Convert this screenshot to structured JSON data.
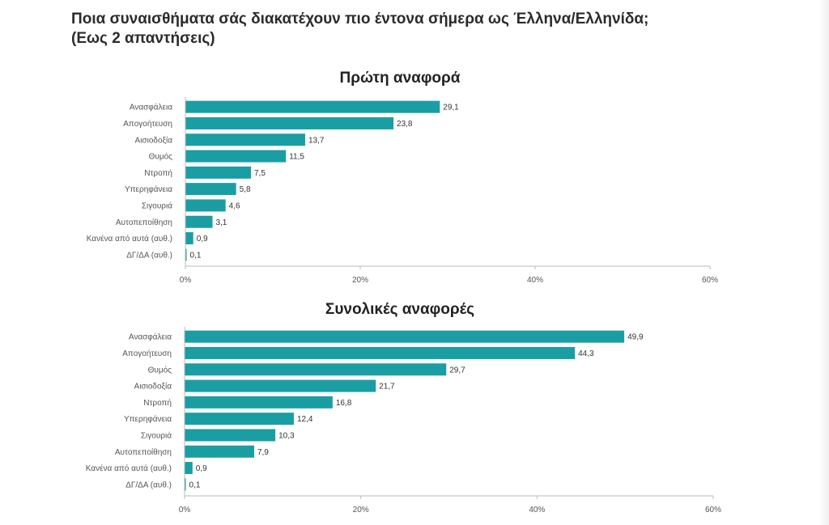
{
  "title_lines": [
    "Ποια συναισθήματα σάς διακατέχουν πιο έντονα σήμερα ως Έλληνα/Ελληνίδα;",
    "(Εως 2 απαντήσεις)"
  ],
  "colors": {
    "bar": "#1a9ea3",
    "axis": "#bbbbbb"
  },
  "chart_data": [
    {
      "type": "bar",
      "orientation": "horizontal",
      "title": "Πρώτη αναφορά",
      "categories": [
        "Ανασφάλεια",
        "Απογοήτευση",
        "Αισιοδοξία",
        "Θυμός",
        "Ντροπή",
        "Υπερηφάνεια",
        "Σιγουριά",
        "Αυτοπεποίθηση",
        "Κανένα από αυτά (αυθ.)",
        "ΔΓ/ΔΑ (αυθ.)"
      ],
      "values": [
        29.1,
        23.8,
        13.7,
        11.5,
        7.5,
        5.8,
        4.6,
        3.1,
        0.9,
        0.1
      ],
      "value_labels": [
        "29,1",
        "23,8",
        "13,7",
        "11,5",
        "7,5",
        "5,8",
        "4,6",
        "3,1",
        "0,9",
        "0,1"
      ],
      "xlim": [
        0,
        60
      ],
      "xticks": [
        0,
        20,
        40,
        60
      ],
      "xtick_labels": [
        "0%",
        "20%",
        "40%",
        "60%"
      ],
      "grid": false,
      "legend": "none"
    },
    {
      "type": "bar",
      "orientation": "horizontal",
      "title": "Συνολικές αναφορές",
      "categories": [
        "Ανασφάλεια",
        "Απογοήτευση",
        "Θυμός",
        "Αισιοδοξία",
        "Ντροπή",
        "Υπερηφάνεια",
        "Σιγουριά",
        "Αυτοπεποίθηση",
        "Κανένα από αυτά (αυθ.)",
        "ΔΓ/ΔΑ (αυθ.)"
      ],
      "values": [
        49.9,
        44.3,
        29.7,
        21.7,
        16.8,
        12.4,
        10.3,
        7.9,
        0.9,
        0.1
      ],
      "value_labels": [
        "49,9",
        "44,3",
        "29,7",
        "21,7",
        "16,8",
        "12,4",
        "10,3",
        "7,9",
        "0,9",
        "0,1"
      ],
      "xlim": [
        0,
        60
      ],
      "xticks": [
        0,
        20,
        40,
        60
      ],
      "xtick_labels": [
        "0%",
        "20%",
        "40%",
        "60%"
      ],
      "grid": false,
      "legend": "none"
    }
  ]
}
